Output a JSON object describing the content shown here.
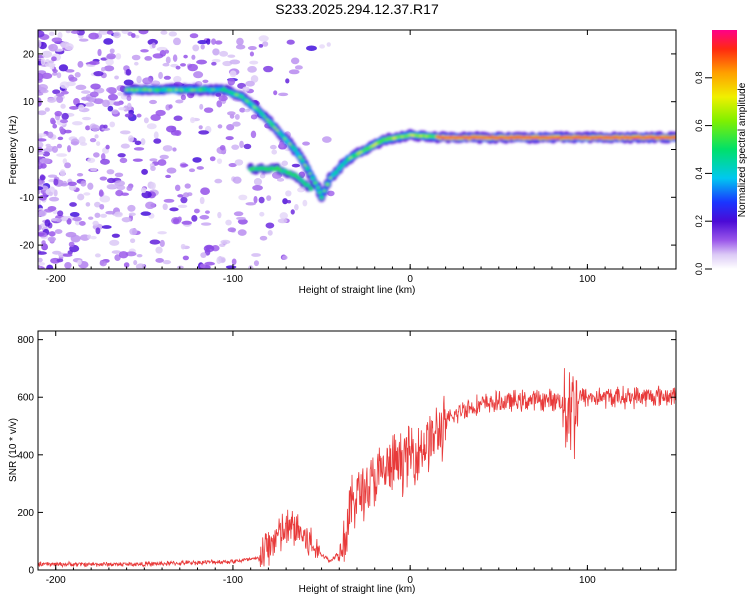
{
  "title": "S233.2025.294.12.37.R17",
  "chart_data": [
    {
      "type": "heatmap",
      "name": "spectrogram",
      "xlabel": "Height of straight line (km)",
      "ylabel": "Frequency (Hz)",
      "xlim": [
        -210,
        150
      ],
      "ylim": [
        -25,
        25
      ],
      "xticks": [
        -200,
        -100,
        0,
        100
      ],
      "yticks": [
        -20,
        -10,
        0,
        10,
        20
      ],
      "colorbar": {
        "label": "Normalized spectral amplitude",
        "range": [
          0,
          1
        ],
        "ticks": [
          "0.0",
          "0.2",
          "0.4",
          "0.6",
          "0.8"
        ]
      },
      "ridge": [
        {
          "x": -160,
          "f": 12.5
        },
        {
          "x": -148,
          "f": 12.5
        },
        {
          "x": -120,
          "f": 12.5
        },
        {
          "x": -105,
          "f": 12.5
        },
        {
          "x": -95,
          "f": 11
        },
        {
          "x": -85,
          "f": 8
        },
        {
          "x": -75,
          "f": 4
        },
        {
          "x": -65,
          "f": 0
        },
        {
          "x": -58,
          "f": -4
        },
        {
          "x": -52,
          "f": -8
        },
        {
          "x": -50,
          "f": -10
        },
        {
          "x": -45,
          "f": -6
        },
        {
          "x": -40,
          "f": -4
        },
        {
          "x": -35,
          "f": -2
        },
        {
          "x": -25,
          "f": 0
        },
        {
          "x": -15,
          "f": 2
        },
        {
          "x": 0,
          "f": 3
        },
        {
          "x": 20,
          "f": 2.5
        },
        {
          "x": 60,
          "f": 2.5
        },
        {
          "x": 100,
          "f": 2.5
        },
        {
          "x": 150,
          "f": 2.5
        }
      ],
      "branch": [
        {
          "x": -90,
          "f": -4
        },
        {
          "x": -75,
          "f": -4
        },
        {
          "x": -65,
          "f": -5.5
        },
        {
          "x": -56,
          "f": -8
        }
      ]
    },
    {
      "type": "line",
      "name": "snr",
      "xlabel": "Height of straight line (km)",
      "ylabel": "SNR (10 * v/v)",
      "xlim": [
        -210,
        150
      ],
      "ylim": [
        0,
        830
      ],
      "xticks": [
        -200,
        -100,
        0,
        100
      ],
      "yticks": [
        0,
        200,
        400,
        600,
        800
      ],
      "color": "#e83a3a",
      "envelope": [
        {
          "x": -210,
          "y": 20
        },
        {
          "x": -150,
          "y": 20
        },
        {
          "x": -100,
          "y": 30
        },
        {
          "x": -85,
          "y": 40
        },
        {
          "x": -75,
          "y": 120
        },
        {
          "x": -65,
          "y": 150
        },
        {
          "x": -55,
          "y": 80
        },
        {
          "x": -45,
          "y": 30
        },
        {
          "x": -38,
          "y": 80
        },
        {
          "x": -32,
          "y": 250
        },
        {
          "x": -22,
          "y": 300
        },
        {
          "x": -15,
          "y": 340
        },
        {
          "x": -5,
          "y": 380
        },
        {
          "x": 5,
          "y": 420
        },
        {
          "x": 15,
          "y": 470
        },
        {
          "x": 22,
          "y": 520
        },
        {
          "x": 30,
          "y": 560
        },
        {
          "x": 45,
          "y": 580
        },
        {
          "x": 70,
          "y": 590
        },
        {
          "x": 85,
          "y": 590
        },
        {
          "x": 88,
          "y": 560
        },
        {
          "x": 90,
          "y": 600
        },
        {
          "x": 92,
          "y": 560
        },
        {
          "x": 95,
          "y": 600
        },
        {
          "x": 120,
          "y": 600
        },
        {
          "x": 150,
          "y": 605
        }
      ]
    }
  ]
}
